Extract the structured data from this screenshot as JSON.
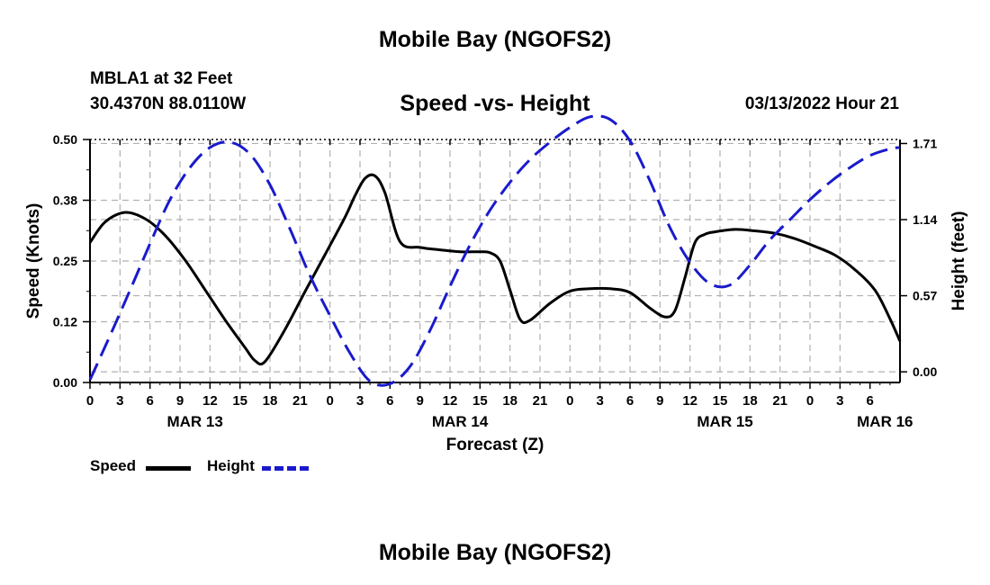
{
  "page": {
    "title_top": "Mobile Bay (NGOFS2)",
    "title_bottom": "Mobile Bay (NGOFS2)"
  },
  "station": {
    "name": "MBLA1 at 32 Feet",
    "coords": "30.4370N  88.0110W"
  },
  "chart_data": {
    "type": "line",
    "title": "Speed -vs- Height",
    "datetime": "03/13/2022 Hour 21",
    "xlabel": "Forecast (Z)",
    "ylabel": "Speed (Knots)",
    "y2label": "Height (feet)",
    "xlim": [
      0,
      81
    ],
    "ylim": [
      0,
      0.5
    ],
    "y2lim": [
      -0.08,
      1.74
    ],
    "x_tick_labels": [
      "0",
      "3",
      "6",
      "9",
      "12",
      "15",
      "18",
      "21",
      "0",
      "3",
      "6",
      "9",
      "12",
      "15",
      "18",
      "21",
      "0",
      "3",
      "6",
      "9",
      "12",
      "15",
      "18",
      "21",
      "0",
      "3",
      "6"
    ],
    "x_day_labels": [
      {
        "label": "MAR 13",
        "x": 10.5
      },
      {
        "label": "MAR 14",
        "x": 37
      },
      {
        "label": "MAR 15",
        "x": 63.5
      },
      {
        "label": "MAR 16",
        "x": 79.5
      }
    ],
    "y_ticks": [
      "0.00",
      "0.12",
      "0.25",
      "0.38",
      "0.50"
    ],
    "y2_ticks": [
      "0.00",
      "0.57",
      "1.14",
      "1.71"
    ],
    "grid": true,
    "legend_position": "bottom-left",
    "series": [
      {
        "name": "Speed",
        "axis": "left",
        "style": "solid",
        "color": "#000000",
        "x": [
          0,
          1.5,
          3.5,
          5.5,
          7.5,
          9.5,
          11.5,
          13.5,
          15.5,
          16.5,
          17.5,
          19.5,
          21.5,
          23.5,
          25.5,
          26.5,
          27.5,
          28.5,
          29.5,
          31,
          33,
          35,
          37,
          39,
          40,
          41,
          42,
          43,
          44,
          46,
          48,
          50,
          52,
          54,
          56,
          57.5,
          58.5,
          59.5,
          60.5,
          61.5,
          62.5,
          64.5,
          66.5,
          68.5,
          70.5,
          72.5,
          74.5,
          76.5,
          78.5,
          80,
          81
        ],
        "values": [
          0.288,
          0.33,
          0.35,
          0.337,
          0.303,
          0.252,
          0.191,
          0.129,
          0.072,
          0.045,
          0.043,
          0.109,
          0.187,
          0.263,
          0.34,
          0.384,
          0.42,
          0.425,
          0.39,
          0.29,
          0.278,
          0.273,
          0.269,
          0.269,
          0.267,
          0.25,
          0.19,
          0.13,
          0.128,
          0.163,
          0.188,
          0.193,
          0.193,
          0.185,
          0.153,
          0.135,
          0.148,
          0.216,
          0.288,
          0.305,
          0.31,
          0.315,
          0.312,
          0.307,
          0.296,
          0.28,
          0.262,
          0.232,
          0.19,
          0.131,
          0.085
        ]
      },
      {
        "name": "Height",
        "axis": "right",
        "style": "dashed",
        "color": "#1a1acc",
        "x": [
          0,
          2,
          4,
          6,
          8,
          10,
          12,
          14,
          16,
          18,
          20,
          22,
          24,
          26,
          28,
          30,
          32,
          34,
          36,
          38,
          40,
          42,
          44,
          46,
          48,
          50,
          52,
          54,
          56,
          58,
          60,
          62,
          64,
          66,
          68,
          70,
          72,
          74,
          76,
          78,
          80,
          81
        ],
        "values": [
          -0.06,
          0.27,
          0.61,
          0.96,
          1.29,
          1.53,
          1.68,
          1.72,
          1.63,
          1.4,
          1.07,
          0.72,
          0.42,
          0.14,
          -0.07,
          -0.09,
          0.04,
          0.31,
          0.64,
          0.95,
          1.21,
          1.42,
          1.59,
          1.72,
          1.83,
          1.91,
          1.89,
          1.73,
          1.43,
          1.08,
          0.82,
          0.66,
          0.65,
          0.8,
          0.99,
          1.14,
          1.29,
          1.42,
          1.53,
          1.62,
          1.67,
          1.68
        ]
      }
    ]
  },
  "legend": {
    "speed_label": "Speed",
    "height_label": "Height"
  }
}
